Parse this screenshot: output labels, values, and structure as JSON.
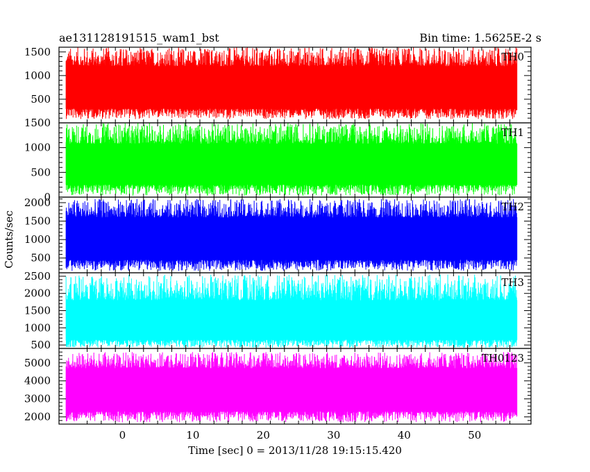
{
  "chart_data": {
    "type": "line",
    "title_left": "ae131128191515_wam1_bst",
    "title_right": "Bin time: 1.5625E-2 s",
    "xlabel": "Time [sec] 0 = 2013/11/28 19:15:15.420",
    "ylabel": "Counts/sec",
    "xlim": [
      -9,
      58
    ],
    "data_x_range": [
      -8,
      56
    ],
    "x_ticks": [
      0,
      10,
      20,
      30,
      40,
      50
    ],
    "grid": false,
    "panels": [
      {
        "name": "TH0",
        "color": "#ff0000",
        "ylim": [
          0,
          1600
        ],
        "y_ticks": [
          500,
          1000,
          1500
        ],
        "band": {
          "low": 300,
          "high": 1200,
          "min": 80,
          "max": 1600,
          "mean": 700
        }
      },
      {
        "name": "TH1",
        "color": "#00ff00",
        "ylim": [
          0,
          1500
        ],
        "y_ticks": [
          0,
          500,
          1000,
          1500
        ],
        "band": {
          "low": 250,
          "high": 1080,
          "min": 30,
          "max": 1500,
          "mean": 660
        }
      },
      {
        "name": "TH2",
        "color": "#0000ff",
        "ylim": [
          100,
          2150
        ],
        "y_ticks": [
          500,
          1000,
          1500,
          2000
        ],
        "band": {
          "low": 450,
          "high": 1600,
          "min": 150,
          "max": 2100,
          "mean": 1000
        }
      },
      {
        "name": "TH3",
        "color": "#00ffff",
        "ylim": [
          400,
          2600
        ],
        "y_ticks": [
          500,
          1000,
          1500,
          2000,
          2500
        ],
        "band": {
          "low": 650,
          "high": 1800,
          "min": 420,
          "max": 2550,
          "mean": 1200
        }
      },
      {
        "name": "TH0123",
        "color": "#ff00ff",
        "ylim": [
          1600,
          5800
        ],
        "y_ticks": [
          2000,
          3000,
          4000,
          5000
        ],
        "band": {
          "low": 2300,
          "high": 4700,
          "min": 1700,
          "max": 5600,
          "mean": 3500
        }
      }
    ]
  }
}
